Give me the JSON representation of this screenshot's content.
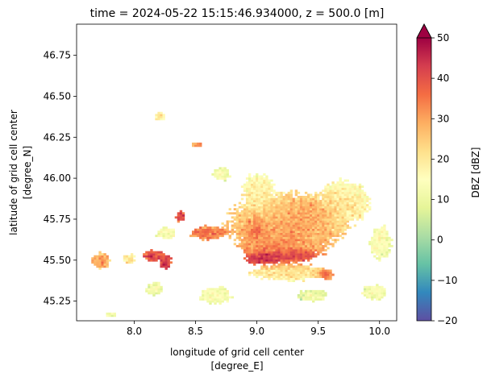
{
  "chart_data": {
    "type": "heatmap",
    "title": "time = 2024-05-22 15:15:46.934000, z = 500.0 [m]",
    "xlabel_line1": "longitude of grid cell center",
    "xlabel_line2": "[degree_E]",
    "ylabel_line1": "latitude of grid cell center",
    "ylabel_line2": "[degree_N]",
    "colorbar_label": "DBZ [dBZ]",
    "xlim": [
      7.53,
      10.14
    ],
    "ylim": [
      45.13,
      46.94
    ],
    "xticks": [
      8.0,
      8.5,
      9.0,
      9.5,
      10.0
    ],
    "xtick_labels": [
      "8.0",
      "8.5",
      "9.0",
      "9.5",
      "10.0"
    ],
    "yticks": [
      45.25,
      45.5,
      45.75,
      46.0,
      46.25,
      46.5,
      46.75
    ],
    "ytick_labels": [
      "45.25",
      "45.50",
      "45.75",
      "46.00",
      "46.25",
      "46.50",
      "46.75"
    ],
    "colorbar_range": [
      -20,
      50
    ],
    "colorbar_ticks": [
      -20,
      -10,
      0,
      10,
      20,
      30,
      40,
      50
    ],
    "colorbar_tick_labels": [
      "−20",
      "−10",
      "0",
      "10",
      "20",
      "30",
      "40",
      "50"
    ],
    "colorbar_extend": "max",
    "colormap": "Spectral_r",
    "colormap_stops": [
      "#5e4fa2",
      "#3288bd",
      "#66c2a5",
      "#abdda4",
      "#e6f598",
      "#ffffbf",
      "#fee08b",
      "#fdae61",
      "#f46d43",
      "#d53e4f",
      "#9e0142"
    ],
    "grid": false,
    "reflectivity_cells": [
      {
        "lon": 9.25,
        "lat": 45.72,
        "rlon": 0.58,
        "rlat": 0.22,
        "dbz": 24
      },
      {
        "lon": 9.2,
        "lat": 45.6,
        "rlon": 0.45,
        "rlat": 0.14,
        "dbz": 32
      },
      {
        "lon": 9.15,
        "lat": 45.52,
        "rlon": 0.32,
        "rlat": 0.05,
        "dbz": 45
      },
      {
        "lon": 9.05,
        "lat": 45.5,
        "rlon": 0.18,
        "rlat": 0.04,
        "dbz": 48
      },
      {
        "lon": 9.35,
        "lat": 45.52,
        "rlon": 0.12,
        "rlat": 0.04,
        "dbz": 46
      },
      {
        "lon": 9.55,
        "lat": 45.41,
        "rlon": 0.08,
        "rlat": 0.04,
        "dbz": 40
      },
      {
        "lon": 8.98,
        "lat": 45.68,
        "rlon": 0.08,
        "rlat": 0.08,
        "dbz": 40
      },
      {
        "lon": 9.45,
        "lat": 45.78,
        "rlon": 0.25,
        "rlat": 0.12,
        "dbz": 30
      },
      {
        "lon": 9.0,
        "lat": 45.92,
        "rlon": 0.15,
        "rlat": 0.12,
        "dbz": 14
      },
      {
        "lon": 9.7,
        "lat": 45.85,
        "rlon": 0.25,
        "rlat": 0.15,
        "dbz": 15
      },
      {
        "lon": 9.25,
        "lat": 45.42,
        "rlon": 0.35,
        "rlat": 0.06,
        "dbz": 18
      },
      {
        "lon": 8.6,
        "lat": 45.66,
        "rlon": 0.18,
        "rlat": 0.05,
        "dbz": 35
      },
      {
        "lon": 8.37,
        "lat": 45.76,
        "rlon": 0.05,
        "rlat": 0.04,
        "dbz": 40
      },
      {
        "lon": 8.15,
        "lat": 45.52,
        "rlon": 0.1,
        "rlat": 0.04,
        "dbz": 38
      },
      {
        "lon": 8.25,
        "lat": 45.48,
        "rlon": 0.05,
        "rlat": 0.05,
        "dbz": 42
      },
      {
        "lon": 7.72,
        "lat": 45.49,
        "rlon": 0.08,
        "rlat": 0.06,
        "dbz": 28
      },
      {
        "lon": 7.95,
        "lat": 45.5,
        "rlon": 0.05,
        "rlat": 0.04,
        "dbz": 18
      },
      {
        "lon": 8.5,
        "lat": 46.2,
        "rlon": 0.05,
        "rlat": 0.02,
        "dbz": 30
      },
      {
        "lon": 8.2,
        "lat": 46.37,
        "rlon": 0.05,
        "rlat": 0.03,
        "dbz": 18
      },
      {
        "lon": 8.65,
        "lat": 45.28,
        "rlon": 0.15,
        "rlat": 0.06,
        "dbz": 12
      },
      {
        "lon": 8.15,
        "lat": 45.32,
        "rlon": 0.08,
        "rlat": 0.05,
        "dbz": 10
      },
      {
        "lon": 10.0,
        "lat": 45.6,
        "rlon": 0.1,
        "rlat": 0.12,
        "dbz": 12
      },
      {
        "lon": 8.7,
        "lat": 46.02,
        "rlon": 0.08,
        "rlat": 0.05,
        "dbz": 12
      },
      {
        "lon": 8.25,
        "lat": 45.66,
        "rlon": 0.1,
        "rlat": 0.04,
        "dbz": 12
      },
      {
        "lon": 9.95,
        "lat": 45.3,
        "rlon": 0.12,
        "rlat": 0.05,
        "dbz": 12
      },
      {
        "lon": 9.45,
        "lat": 45.28,
        "rlon": 0.15,
        "rlat": 0.04,
        "dbz": 10
      },
      {
        "lon": 7.8,
        "lat": 45.16,
        "rlon": 0.05,
        "rlat": 0.02,
        "dbz": 10
      }
    ]
  }
}
